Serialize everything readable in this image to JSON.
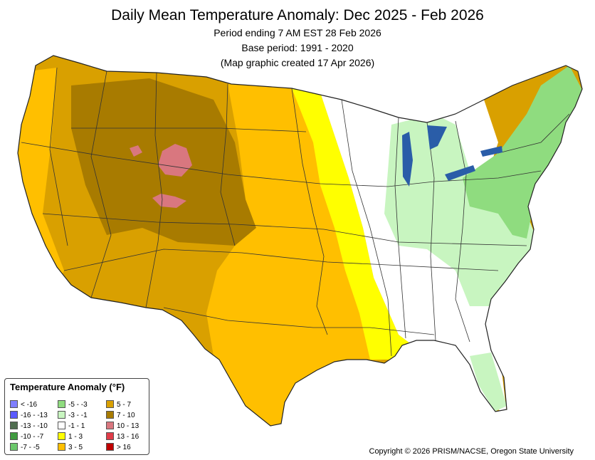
{
  "header": {
    "title": "Daily Mean Temperature Anomaly: Dec 2025 - Feb 2026",
    "line1": "Period ending 7 AM EST 28 Feb 2026",
    "line2": "Base period: 1991 - 2020",
    "line3": "(Map graphic created 17 Apr 2026)"
  },
  "legend": {
    "title": "Temperature Anomaly (°F)",
    "items": [
      {
        "label": "< -16",
        "color": "#7f7fff"
      },
      {
        "label": "-16 - -13",
        "color": "#5a5aff"
      },
      {
        "label": "-13 - -10",
        "color": "#4f6d4f"
      },
      {
        "label": "-10 - -7",
        "color": "#3f9a3f"
      },
      {
        "label": "-7 - -5",
        "color": "#6cc86c"
      },
      {
        "label": "-5 - -3",
        "color": "#8fdc7f"
      },
      {
        "label": "-3 - -1",
        "color": "#c8f5c0"
      },
      {
        "label": "-1 - 1",
        "color": "#ffffff"
      },
      {
        "label": "1 - 3",
        "color": "#ffff00"
      },
      {
        "label": "3 - 5",
        "color": "#ffbf00"
      },
      {
        "label": "5 - 7",
        "color": "#d9a000"
      },
      {
        "label": "7 - 10",
        "color": "#a87b00"
      },
      {
        "label": "10 - 13",
        "color": "#d9777f"
      },
      {
        "label": "13 - 16",
        "color": "#e03c48"
      },
      {
        "label": "> 16",
        "color": "#c00000"
      }
    ]
  },
  "map_regions": [
    {
      "name": "west",
      "anomaly_class": "5 - 7"
    },
    {
      "name": "rockies",
      "anomaly_class": "7 - 10"
    },
    {
      "name": "wyoming-colorado-hotspots",
      "anomaly_class": "10 - 13"
    },
    {
      "name": "plains-south",
      "anomaly_class": "3 - 5"
    },
    {
      "name": "mississippi-valley",
      "anomaly_class": "1 - 3"
    },
    {
      "name": "midwest-southeast",
      "anomaly_class": "-1 - 1"
    },
    {
      "name": "great-lakes-ohio-valley",
      "anomaly_class": "-3 - -1"
    },
    {
      "name": "northeast-midatlantic",
      "anomaly_class": "-5 - -3"
    }
  ],
  "copyright": "Copyright © 2026 PRISM/NACSE, Oregon State University"
}
